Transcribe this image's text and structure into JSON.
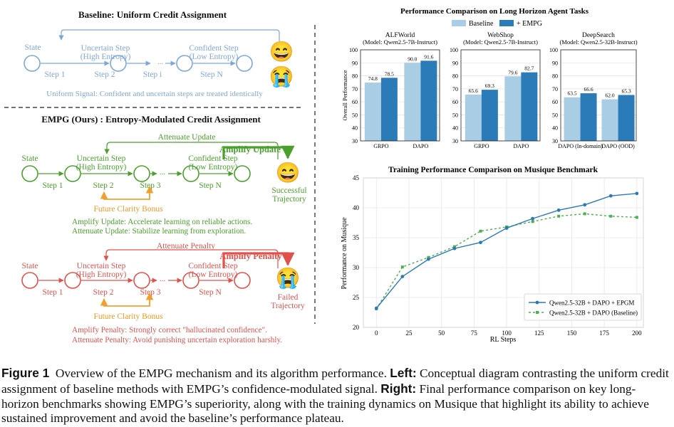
{
  "left": {
    "baseline": {
      "title": "Baseline: Uniform Credit Assignment",
      "node_labels": [
        "State",
        "Uncertain Step\n(High Entropy)",
        "Confident Step\n(Low Entropy)"
      ],
      "step_labels": [
        "Step 1",
        "Step 2",
        "Step i",
        "Step N"
      ],
      "ellipsis": "...",
      "signal": "Uniform Signal: Confident and uncertain steps are treated identically",
      "emoji_top": "😄",
      "emoji_bottom": "😭"
    },
    "empg": {
      "title": "EMPG (Ours) : Entropy-Modulated Credit Assignment",
      "success": {
        "node_labels": [
          "State",
          "Uncertain Step\n(High Entropy)",
          "Confident Step\n(Low Entropy)"
        ],
        "step_labels": [
          "Step 1",
          "Step 2",
          "Step 3",
          "Step N"
        ],
        "ellipsis": "...",
        "attenuate": "Attenuate Update",
        "amplify": "Amplify Update",
        "bonus": "Future Clarity Bonus",
        "outcome": "Successful\nTrajectory",
        "emoji": "😄",
        "note1": "Amplify Update: Accelerate learning on reliable actions.",
        "note2": "Attenuate Update: Stabilize learning from exploration."
      },
      "failure": {
        "node_labels": [
          "State",
          "Uncertain Step\n(High Entropy)",
          "Confident Step\n(Low Entropy)"
        ],
        "step_labels": [
          "Step 1",
          "Step 2",
          "Step 3",
          "Step N"
        ],
        "ellipsis": "...",
        "attenuate": "Attenuate Penalty",
        "amplify": "Amplify Penalty",
        "bonus": "Future Clarity Bonus",
        "outcome": "Failed\nTrajectory",
        "emoji": "😭",
        "note1": "Amplify Penalty: Strongly correct \"hallucinated confidence\".",
        "note2": "Attenuate Penalty: Avoid punishing uncertain exploration harshly."
      }
    }
  },
  "colors": {
    "baseline_blue": "#7ea7d8",
    "success_green": "#4aa02c",
    "failure_red": "#e0514c",
    "orange": "#f0a030",
    "bar_light": "#a8cde4",
    "bar_dark": "#2b7bb9",
    "line_blue": "#2a7ab8",
    "line_green": "#4caf50"
  },
  "chart_data": [
    {
      "type": "bar",
      "title": "Performance Comparison on Long Horizon Agent Tasks",
      "ylabel": "Overall Performance",
      "ylim": [
        30,
        100
      ],
      "yticks": [
        30,
        40,
        50,
        60,
        70,
        80,
        90,
        100
      ],
      "legend": [
        "Baseline",
        "+ EMPG"
      ],
      "legend_position": "top-center",
      "grid": true,
      "panels": [
        {
          "title": "ALFWorld",
          "subtitle": "(Model: Qwen2.5-7B-Instruct)",
          "categories": [
            "GRPO",
            "DAPO"
          ],
          "series": [
            {
              "name": "Baseline",
              "values": [
                74.8,
                90.0
              ]
            },
            {
              "name": "+ EMPG",
              "values": [
                78.5,
                91.6
              ]
            }
          ],
          "value_labels": [
            [
              "74.8",
              "90.0"
            ],
            [
              "78.5",
              "91.6"
            ]
          ]
        },
        {
          "title": "WebShop",
          "subtitle": "(Model: Qwen2.5-7B-Instruct)",
          "categories": [
            "GRPO",
            "DAPO"
          ],
          "series": [
            {
              "name": "Baseline",
              "values": [
                65.6,
                79.6
              ]
            },
            {
              "name": "+ EMPG",
              "values": [
                69.3,
                82.7
              ]
            }
          ],
          "value_labels": [
            [
              "65.6",
              "79.6"
            ],
            [
              "69.3",
              "82.7"
            ]
          ]
        },
        {
          "title": "DeepSearch",
          "subtitle": "(Model: Qwen2.5-32B-Instruct)",
          "categories": [
            "DAPO (In-domain)",
            "DAPO (OOD)"
          ],
          "series": [
            {
              "name": "Baseline",
              "values": [
                63.5,
                62.0
              ]
            },
            {
              "name": "+ EMPG",
              "values": [
                66.6,
                65.3
              ]
            }
          ],
          "value_labels": [
            [
              "63.5",
              "62.0"
            ],
            [
              "66.6",
              "65.3"
            ]
          ]
        }
      ]
    },
    {
      "type": "line",
      "title": "Training Performance Comparison on Musique Benchmark",
      "xlabel": "RL Steps",
      "ylabel": "Performance on Musique",
      "xlim": [
        -10,
        205
      ],
      "ylim": [
        20,
        45
      ],
      "xticks": [
        0,
        25,
        50,
        75,
        100,
        125,
        150,
        175,
        200
      ],
      "yticks": [
        20,
        25,
        30,
        35,
        40,
        45
      ],
      "grid": true,
      "legend_position": "lower-right",
      "series": [
        {
          "name": "Qwen2.5-32B + DAPO + EPGM",
          "x": [
            0,
            20,
            40,
            60,
            80,
            100,
            120,
            140,
            160,
            180,
            200
          ],
          "y": [
            23.2,
            28.5,
            31.4,
            33.2,
            34.2,
            36.6,
            38.2,
            39.6,
            40.5,
            42.0,
            42.4
          ]
        },
        {
          "name": "Qwen2.5-32B + DAPO (Baseline)",
          "x": [
            0,
            20,
            40,
            60,
            80,
            100,
            120,
            140,
            160,
            180,
            200
          ],
          "y": [
            23.1,
            30.1,
            31.7,
            33.5,
            36.1,
            36.8,
            37.7,
            38.6,
            39.0,
            38.6,
            38.4
          ]
        }
      ]
    }
  ],
  "caption": {
    "label": "Figure 1",
    "text1": "Overview of the EMPG mechanism and its algorithm performance.",
    "left_label": "Left:",
    "text2": "Conceptual diagram contrasting the uniform credit assignment of baseline methods with EMPG’s confidence-modulated signal.",
    "right_label": "Right:",
    "text3": "Final performance comparison on key long-horizon benchmarks showing EMPG’s superiority, along with the training dynamics on Musique that highlight its ability to achieve sustained improvement and avoid the baseline’s performance plateau."
  }
}
